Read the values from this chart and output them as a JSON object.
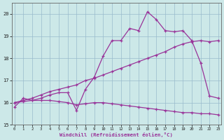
{
  "x_values": [
    0,
    1,
    2,
    3,
    4,
    5,
    6,
    7,
    8,
    9,
    10,
    11,
    12,
    13,
    14,
    15,
    16,
    17,
    18,
    19,
    20,
    21,
    22,
    23
  ],
  "line1_y": [
    15.8,
    16.2,
    16.1,
    16.2,
    16.35,
    16.45,
    16.45,
    15.65,
    16.6,
    17.15,
    18.1,
    18.8,
    18.8,
    19.35,
    19.25,
    20.1,
    19.75,
    19.25,
    19.2,
    19.25,
    18.8,
    17.8,
    16.3,
    16.2
  ],
  "line2_y": [
    16.0,
    16.1,
    16.2,
    16.35,
    16.5,
    16.6,
    16.7,
    16.8,
    17.0,
    17.1,
    17.25,
    17.4,
    17.55,
    17.7,
    17.85,
    18.0,
    18.15,
    18.3,
    18.5,
    18.65,
    18.75,
    18.8,
    18.75,
    18.8
  ],
  "line3_y": [
    16.0,
    16.05,
    16.1,
    16.1,
    16.1,
    16.05,
    16.0,
    15.9,
    15.95,
    16.0,
    16.0,
    15.95,
    15.9,
    15.85,
    15.8,
    15.75,
    15.7,
    15.65,
    15.6,
    15.55,
    15.55,
    15.5,
    15.5,
    15.45
  ],
  "line_color": "#993399",
  "bg_color": "#cce8e8",
  "grid_color": "#99bbcc",
  "xlabel": "Windchill (Refroidissement éolien,°C)",
  "ylim": [
    15.0,
    20.5
  ],
  "xlim": [
    -0.3,
    23.3
  ],
  "yticks": [
    15,
    16,
    17,
    18,
    19,
    20
  ],
  "xticks": [
    0,
    1,
    2,
    3,
    4,
    5,
    6,
    7,
    8,
    9,
    10,
    11,
    12,
    13,
    14,
    15,
    16,
    17,
    18,
    19,
    20,
    21,
    22,
    23
  ]
}
